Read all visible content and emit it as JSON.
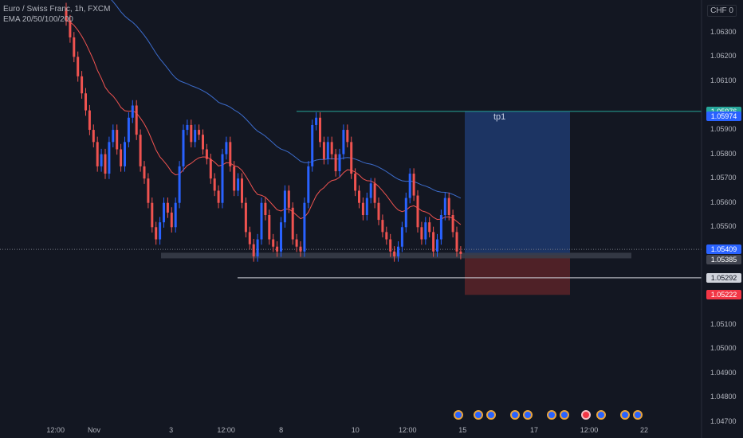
{
  "symbol_title": "Euro / Swiss Franc, 1h, FXCM",
  "indicator_label": "EMA 20/50/100/200",
  "currency_label": "CHF 0",
  "price_axis": [
    {
      "label": "1.06300",
      "price": 1.063
    },
    {
      "label": "1.06200",
      "price": 1.062
    },
    {
      "label": "1.06100",
      "price": 1.061
    },
    {
      "label": "1.05900",
      "price": 1.059
    },
    {
      "label": "1.05800",
      "price": 1.058
    },
    {
      "label": "1.05700",
      "price": 1.057
    },
    {
      "label": "1.05600",
      "price": 1.056
    },
    {
      "label": "1.05500",
      "price": 1.055
    },
    {
      "label": "1.05100",
      "price": 1.051
    },
    {
      "label": "1.05000",
      "price": 1.05
    },
    {
      "label": "1.04900",
      "price": 1.049
    },
    {
      "label": "1.04800",
      "price": 1.048
    },
    {
      "label": "1.04700",
      "price": 1.047
    }
  ],
  "price_badges": [
    {
      "label": "1.05976",
      "price": 1.05976,
      "bg": "#26a69a",
      "fg": "#ffffff"
    },
    {
      "label": "1.05974",
      "price": 1.05974,
      "bg": "#2962ff",
      "fg": "#ffffff"
    },
    {
      "label": "1.05409",
      "price": 1.05409,
      "bg": "#2962ff",
      "fg": "#ffffff"
    },
    {
      "label": "1.05385",
      "price": 1.05385,
      "bg": "#434651",
      "fg": "#ffffff"
    },
    {
      "label": "1.05292",
      "price": 1.05292,
      "bg": "#d1d4dc",
      "fg": "#131722"
    },
    {
      "label": "1.05222",
      "price": 1.05222,
      "bg": "#f23645",
      "fg": "#ffffff"
    }
  ],
  "time_axis": [
    {
      "label": "12:00",
      "bar": -14
    },
    {
      "label": "Nov",
      "bar": 0
    },
    {
      "label": "3",
      "bar": 28
    },
    {
      "label": "12:00",
      "bar": 48
    },
    {
      "label": "8",
      "bar": 68
    },
    {
      "label": "10",
      "bar": 95
    },
    {
      "label": "12:00",
      "bar": 114
    },
    {
      "label": "15",
      "bar": 134
    },
    {
      "label": "17",
      "bar": 160
    },
    {
      "label": "12:00",
      "bar": 180
    },
    {
      "label": "22",
      "bar": 200
    }
  ],
  "position": {
    "label": "tp1",
    "entry": 1.05385,
    "target": 1.05976,
    "stop": 1.05222
  },
  "levels": {
    "support_zone": 1.05385,
    "swing_low": 1.05292,
    "resistance": 1.05976
  },
  "colors": {
    "up": "#2962ff",
    "down": "#ef5350",
    "ema_fast": "#ef5350",
    "ema_slow": "#3c6ccc",
    "profit_zone": "#1e3a6e",
    "loss_zone": "#5b2328"
  },
  "events": [
    {
      "icon": "economic-event-icon",
      "color": "blue"
    },
    {
      "icon": "economic-event-icon",
      "color": "blue"
    },
    {
      "icon": "economic-event-icon",
      "color": "blue"
    },
    {
      "icon": "economic-event-icon",
      "color": "blue"
    },
    {
      "icon": "economic-event-icon",
      "color": "blue"
    },
    {
      "icon": "economic-event-icon",
      "color": "blue"
    },
    {
      "icon": "economic-event-icon",
      "color": "blue"
    },
    {
      "icon": "economic-event-icon",
      "color": "red"
    },
    {
      "icon": "economic-event-icon",
      "color": "blue"
    },
    {
      "icon": "economic-event-icon",
      "color": "blue"
    },
    {
      "icon": "economic-event-icon",
      "color": "blue"
    }
  ],
  "chart_data": {
    "type": "candlestick",
    "symbol": "EUR/CHF",
    "timeframe": "1h",
    "ylim": [
      1.0465,
      1.0645
    ],
    "closes": [
      1.0635,
      1.0628,
      1.062,
      1.0612,
      1.0605,
      1.0598,
      1.059,
      1.0585,
      1.0575,
      1.058,
      1.0572,
      1.0585,
      1.059,
      1.0582,
      1.0575,
      1.0585,
      1.0595,
      1.06,
      1.0588,
      1.0575,
      1.057,
      1.056,
      1.055,
      1.0545,
      1.0552,
      1.056,
      1.0556,
      1.055,
      1.056,
      1.0575,
      1.059,
      1.0592,
      1.0585,
      1.059,
      1.0588,
      1.0582,
      1.0578,
      1.057,
      1.0565,
      1.056,
      1.058,
      1.0585,
      1.0575,
      1.0565,
      1.057,
      1.056,
      1.0548,
      1.0543,
      1.0538,
      1.0545,
      1.056,
      1.0555,
      1.0545,
      1.0542,
      1.054,
      1.0552,
      1.0565,
      1.0558,
      1.0545,
      1.0542,
      1.054,
      1.056,
      1.0575,
      1.0592,
      1.0595,
      1.0585,
      1.0578,
      1.0585,
      1.058,
      1.0573,
      1.058,
      1.059,
      1.0585,
      1.0572,
      1.0565,
      1.056,
      1.0555,
      1.0562,
      1.0568,
      1.056,
      1.0553,
      1.0548,
      1.0545,
      1.054,
      1.0538,
      1.0542,
      1.055,
      1.0562,
      1.0572,
      1.0563,
      1.055,
      1.0545,
      1.0552,
      1.0548,
      1.054,
      1.0545,
      1.0555,
      1.0562,
      1.0555,
      1.0548,
      1.054,
      1.0539
    ]
  }
}
